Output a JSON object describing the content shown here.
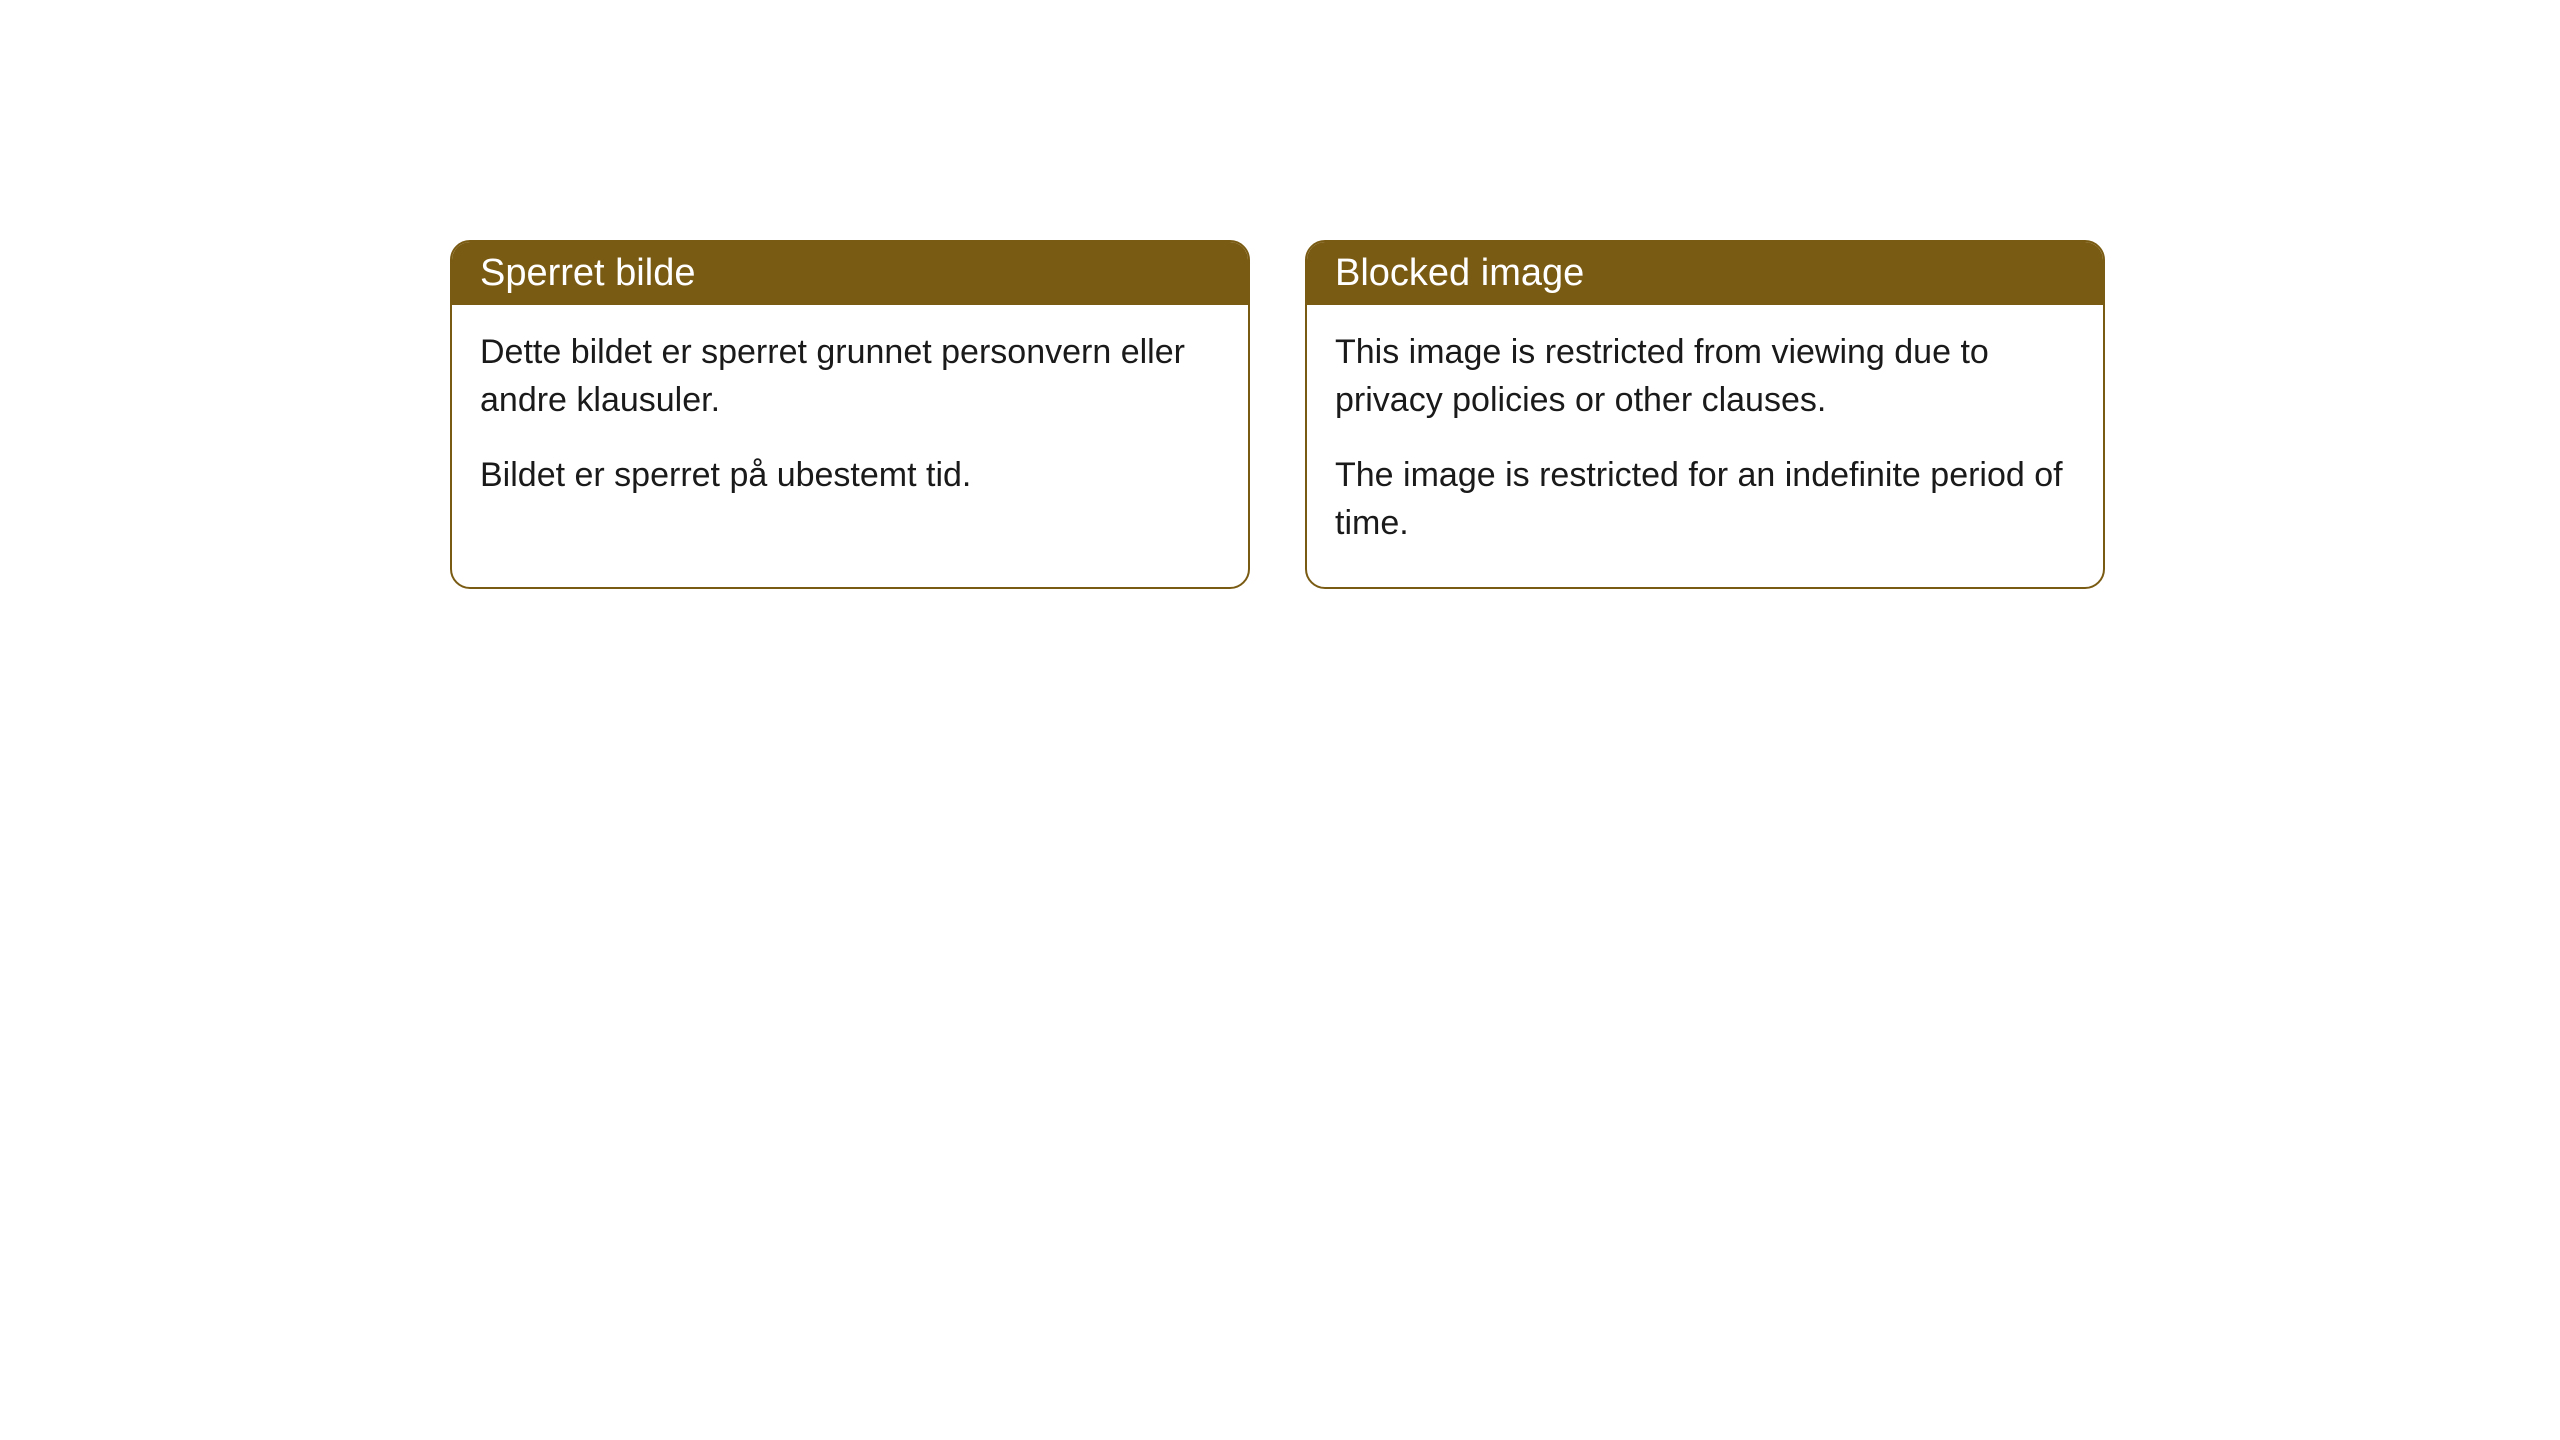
{
  "cards": [
    {
      "title": "Sperret bilde",
      "paragraph1": "Dette bildet er sperret grunnet personvern eller andre klausuler.",
      "paragraph2": "Bildet er sperret på ubestemt tid."
    },
    {
      "title": "Blocked image",
      "paragraph1": "This image is restricted from viewing due to privacy policies or other clauses.",
      "paragraph2": "The image is restricted for an indefinite period of time."
    }
  ],
  "styling": {
    "header_background_color": "#7a5b13",
    "header_text_color": "#ffffff",
    "border_color": "#7a5b13",
    "body_text_color": "#1a1a1a",
    "card_background_color": "#ffffff",
    "page_background_color": "#ffffff",
    "border_radius": "20px",
    "header_fontsize": "38px",
    "body_fontsize": "34px"
  }
}
